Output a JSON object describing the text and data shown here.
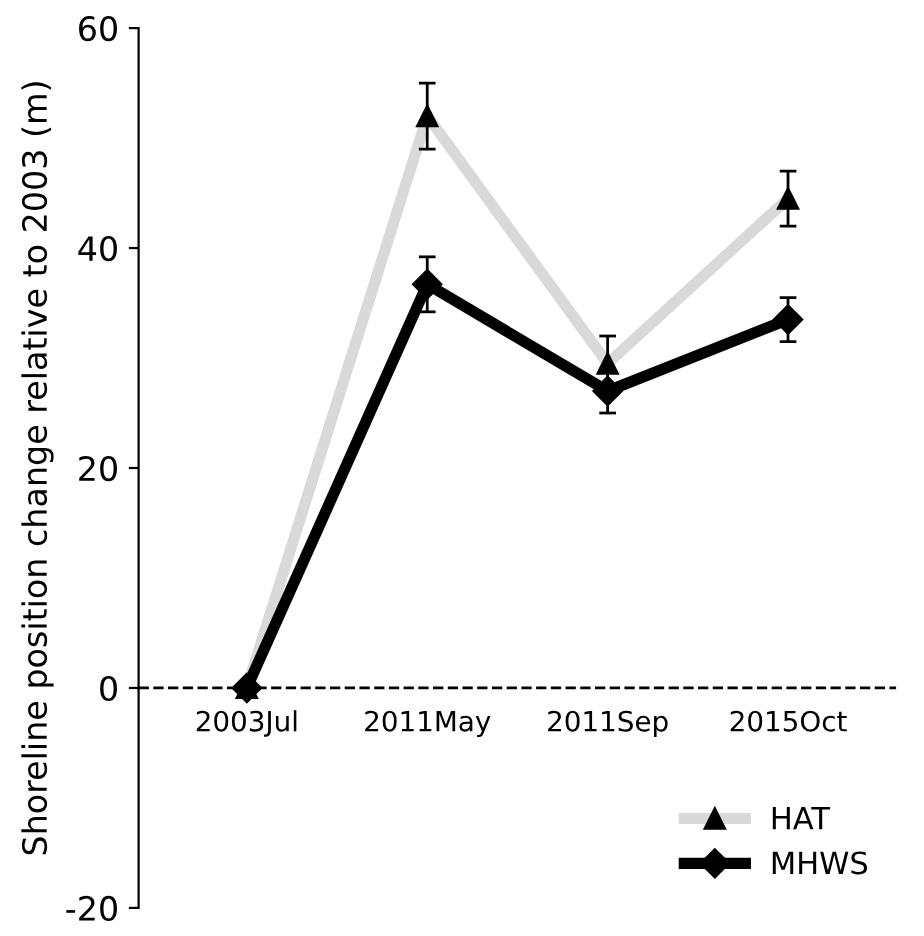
{
  "chart_data": {
    "type": "line",
    "ylabel": "Shoreline position change relative to 2003 (m)",
    "categories": [
      "2003Jul",
      "2011May",
      "2011Sep",
      "2015Oct"
    ],
    "series": [
      {
        "name": "HAT",
        "color": "#d9d9d9",
        "marker": "triangle",
        "values": [
          0,
          52,
          29.5,
          44.5
        ],
        "errors": [
          null,
          3,
          2.5,
          2.5
        ]
      },
      {
        "name": "MHWS",
        "color": "#000000",
        "marker": "diamond",
        "values": [
          0,
          36.7,
          27,
          33.5
        ],
        "errors": [
          null,
          2.5,
          2,
          2
        ]
      }
    ],
    "ylim": [
      -20,
      60
    ],
    "yticks": [
      -20,
      0,
      20,
      40,
      60
    ],
    "ref_lines": [
      {
        "axis": "y",
        "value": 0,
        "color": "#000000",
        "line_style": "dashed"
      }
    ],
    "legend": "bottom right",
    "grid": false
  }
}
